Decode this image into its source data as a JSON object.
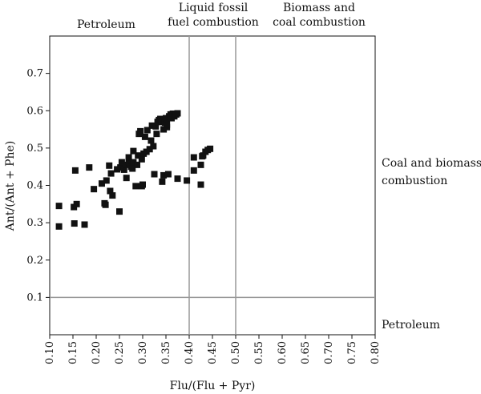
{
  "chart_data": {
    "type": "scatter",
    "xlabel": "Flu/(Flu + Pyr)",
    "ylabel": "Ant/(Ant + Phe)",
    "xlim": [
      0.1,
      0.8
    ],
    "ylim": [
      0.0,
      0.8
    ],
    "xticks": [
      "0.10",
      "0.15",
      "0.20",
      "0.25",
      "0.30",
      "0.35",
      "0.40",
      "0.45",
      "0.50",
      "0.55",
      "0.60",
      "0.65",
      "0.70",
      "0.75",
      "0.80"
    ],
    "yticks": [
      "0.1",
      "0.2",
      "0.3",
      "0.4",
      "0.5",
      "0.6",
      "0.7"
    ],
    "grid": false,
    "reference_lines": {
      "vertical": [
        0.4,
        0.5
      ],
      "horizontal": [
        0.1
      ]
    },
    "annotations": {
      "top_left": "Petroleum",
      "top_mid_1": "Liquid fossil",
      "top_mid_2": "fuel combustion",
      "top_right_1": "Biomass and",
      "top_right_2": "coal combustion",
      "right_upper_1": "Coal and biomass",
      "right_upper_2": "combustion",
      "right_lower": "Petroleum"
    },
    "points": [
      [
        0.12,
        0.345
      ],
      [
        0.12,
        0.29
      ],
      [
        0.152,
        0.342
      ],
      [
        0.153,
        0.298
      ],
      [
        0.155,
        0.44
      ],
      [
        0.158,
        0.35
      ],
      [
        0.175,
        0.295
      ],
      [
        0.185,
        0.448
      ],
      [
        0.195,
        0.39
      ],
      [
        0.212,
        0.405
      ],
      [
        0.218,
        0.352
      ],
      [
        0.22,
        0.348
      ],
      [
        0.222,
        0.413
      ],
      [
        0.228,
        0.453
      ],
      [
        0.23,
        0.385
      ],
      [
        0.232,
        0.432
      ],
      [
        0.235,
        0.373
      ],
      [
        0.245,
        0.443
      ],
      [
        0.25,
        0.33
      ],
      [
        0.252,
        0.448
      ],
      [
        0.255,
        0.462
      ],
      [
        0.26,
        0.442
      ],
      [
        0.265,
        0.42
      ],
      [
        0.265,
        0.455
      ],
      [
        0.27,
        0.463
      ],
      [
        0.27,
        0.475
      ],
      [
        0.275,
        0.45
      ],
      [
        0.278,
        0.445
      ],
      [
        0.28,
        0.462
      ],
      [
        0.28,
        0.492
      ],
      [
        0.285,
        0.398
      ],
      [
        0.288,
        0.455
      ],
      [
        0.29,
        0.48
      ],
      [
        0.292,
        0.538
      ],
      [
        0.295,
        0.545
      ],
      [
        0.298,
        0.47
      ],
      [
        0.298,
        0.398
      ],
      [
        0.3,
        0.402
      ],
      [
        0.302,
        0.485
      ],
      [
        0.305,
        0.53
      ],
      [
        0.308,
        0.49
      ],
      [
        0.31,
        0.548
      ],
      [
        0.315,
        0.497
      ],
      [
        0.318,
        0.52
      ],
      [
        0.32,
        0.56
      ],
      [
        0.323,
        0.505
      ],
      [
        0.325,
        0.43
      ],
      [
        0.328,
        0.558
      ],
      [
        0.33,
        0.538
      ],
      [
        0.332,
        0.57
      ],
      [
        0.335,
        0.575
      ],
      [
        0.338,
        0.578
      ],
      [
        0.34,
        0.57
      ],
      [
        0.342,
        0.41
      ],
      [
        0.345,
        0.55
      ],
      [
        0.345,
        0.427
      ],
      [
        0.348,
        0.568
      ],
      [
        0.35,
        0.58
      ],
      [
        0.352,
        0.556
      ],
      [
        0.352,
        0.563
      ],
      [
        0.355,
        0.43
      ],
      [
        0.357,
        0.585
      ],
      [
        0.36,
        0.59
      ],
      [
        0.362,
        0.58
      ],
      [
        0.365,
        0.592
      ],
      [
        0.368,
        0.585
      ],
      [
        0.372,
        0.59
      ],
      [
        0.375,
        0.593
      ],
      [
        0.375,
        0.418
      ],
      [
        0.395,
        0.413
      ],
      [
        0.41,
        0.44
      ],
      [
        0.41,
        0.475
      ],
      [
        0.425,
        0.402
      ],
      [
        0.425,
        0.455
      ],
      [
        0.428,
        0.478
      ],
      [
        0.43,
        0.48
      ],
      [
        0.435,
        0.49
      ],
      [
        0.44,
        0.495
      ],
      [
        0.445,
        0.498
      ]
    ]
  }
}
